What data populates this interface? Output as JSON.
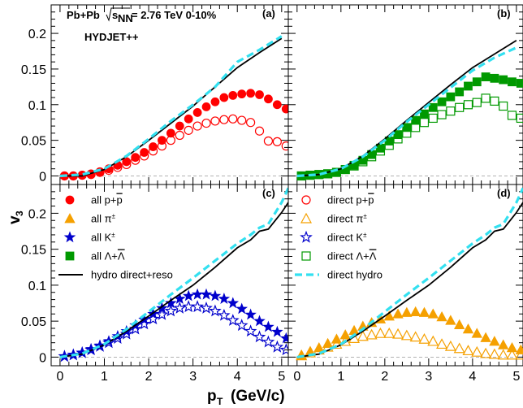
{
  "figure": {
    "collision_label": "Pb+Pb",
    "energy_label": "= 2.76 TeV 0-10%",
    "sqrt_prefix": "s",
    "sqrt_sub": "NN",
    "model_label": "HYDJET++",
    "model_color": "#0a0a6e",
    "y_axis_label": "v",
    "y_axis_sub": "3",
    "x_axis_label": "(GeV/c)",
    "x_axis_main": "p",
    "x_axis_sub": "T"
  },
  "colors": {
    "proton": "#ff0000",
    "pion": "#f5a000",
    "kaon": "#0000cc",
    "lambda": "#009900",
    "hydro_full": "#000000",
    "hydro_direct": "#33e0f0"
  },
  "chart_data": [
    {
      "type": "scatter",
      "panel_label": "(a)",
      "xlim": [
        -0.2,
        5.15
      ],
      "ylim": [
        -0.012,
        0.24
      ],
      "x_ticks": [
        0,
        1,
        2,
        3,
        4,
        5
      ],
      "y_ticks": [
        0,
        0.05,
        0.1,
        0.15,
        0.2
      ],
      "y_tick_labels": [
        "0",
        "0.05",
        "0.1",
        "0.15",
        "0.2"
      ],
      "series": [
        {
          "name": "all p+p̄",
          "marker": "circle",
          "filled": true,
          "color_key": "proton",
          "x": [
            0.1,
            0.3,
            0.5,
            0.7,
            0.9,
            1.1,
            1.3,
            1.5,
            1.7,
            1.9,
            2.1,
            2.3,
            2.5,
            2.7,
            2.9,
            3.1,
            3.3,
            3.5,
            3.7,
            3.9,
            4.1,
            4.3,
            4.5,
            4.7,
            4.9,
            5.1
          ],
          "y": [
            0.0,
            0.0,
            0.001,
            0.003,
            0.006,
            0.01,
            0.015,
            0.02,
            0.026,
            0.033,
            0.041,
            0.05,
            0.06,
            0.07,
            0.08,
            0.089,
            0.097,
            0.104,
            0.11,
            0.113,
            0.115,
            0.116,
            0.114,
            0.108,
            0.1,
            0.094
          ]
        },
        {
          "name": "direct p+p̄",
          "marker": "circle",
          "filled": false,
          "color_key": "proton",
          "x": [
            0.1,
            0.3,
            0.5,
            0.7,
            0.9,
            1.1,
            1.3,
            1.5,
            1.7,
            1.9,
            2.1,
            2.3,
            2.5,
            2.7,
            2.9,
            3.1,
            3.3,
            3.5,
            3.7,
            3.9,
            4.1,
            4.3,
            4.5,
            4.7,
            4.9,
            5.1
          ],
          "y": [
            0.0,
            0.0,
            0.001,
            0.002,
            0.005,
            0.008,
            0.012,
            0.016,
            0.022,
            0.028,
            0.035,
            0.042,
            0.05,
            0.057,
            0.064,
            0.07,
            0.074,
            0.077,
            0.079,
            0.08,
            0.078,
            0.075,
            0.063,
            0.049,
            0.048,
            0.042
          ]
        },
        {
          "name": "hydro direct+reso",
          "line": true,
          "dashed": false,
          "color_key": "hydro_full",
          "x": [
            0.0,
            0.5,
            1.0,
            1.5,
            2.0,
            2.5,
            3.0,
            3.5,
            4.0,
            4.5,
            5.0
          ],
          "y": [
            0.0,
            0.0,
            0.009,
            0.027,
            0.05,
            0.074,
            0.098,
            0.125,
            0.152,
            0.173,
            0.193
          ]
        },
        {
          "name": "direct hydro",
          "line": true,
          "dashed": true,
          "color_key": "hydro_direct",
          "x": [
            0.0,
            0.5,
            1.0,
            1.5,
            2.0,
            2.5,
            3.0,
            3.5,
            4.0,
            4.5,
            5.0
          ],
          "y": [
            0.0,
            0.002,
            0.01,
            0.028,
            0.052,
            0.077,
            0.1,
            0.125,
            0.16,
            0.177,
            0.196
          ]
        }
      ]
    },
    {
      "type": "scatter",
      "panel_label": "(b)",
      "xlim": [
        -0.2,
        5.15
      ],
      "ylim": [
        -0.012,
        0.24
      ],
      "x_ticks": [
        0,
        1,
        2,
        3,
        4,
        5
      ],
      "y_ticks": [
        0,
        0.05,
        0.1,
        0.15,
        0.2
      ],
      "series": [
        {
          "name": "all Λ+Λ̄",
          "marker": "square",
          "filled": true,
          "color_key": "lambda",
          "x": [
            0.1,
            0.3,
            0.5,
            0.7,
            0.9,
            1.1,
            1.3,
            1.5,
            1.7,
            1.9,
            2.1,
            2.3,
            2.5,
            2.7,
            2.9,
            3.1,
            3.3,
            3.5,
            3.7,
            3.9,
            4.1,
            4.3,
            4.5,
            4.7,
            4.9,
            5.1
          ],
          "y": [
            0.0,
            0.001,
            0.002,
            0.003,
            0.005,
            0.009,
            0.015,
            0.022,
            0.03,
            0.039,
            0.049,
            0.058,
            0.068,
            0.078,
            0.087,
            0.096,
            0.104,
            0.111,
            0.118,
            0.126,
            0.132,
            0.139,
            0.137,
            0.135,
            0.132,
            0.13
          ]
        },
        {
          "name": "direct Λ+Λ̄",
          "marker": "square",
          "filled": false,
          "color_key": "lambda",
          "x": [
            0.1,
            0.3,
            0.5,
            0.7,
            0.9,
            1.1,
            1.3,
            1.5,
            1.7,
            1.9,
            2.1,
            2.3,
            2.5,
            2.7,
            2.9,
            3.1,
            3.3,
            3.5,
            3.7,
            3.9,
            4.1,
            4.3,
            4.5,
            4.7,
            4.9,
            5.1
          ],
          "y": [
            0.0,
            0.001,
            0.002,
            0.003,
            0.005,
            0.009,
            0.014,
            0.02,
            0.027,
            0.035,
            0.043,
            0.052,
            0.06,
            0.068,
            0.075,
            0.081,
            0.086,
            0.091,
            0.096,
            0.1,
            0.103,
            0.109,
            0.105,
            0.098,
            0.085,
            0.081
          ]
        },
        {
          "name": "hydro direct+reso",
          "line": true,
          "dashed": false,
          "color_key": "hydro_full",
          "x": [
            0.0,
            0.5,
            1.0,
            1.5,
            2.0,
            2.5,
            3.0,
            3.5,
            4.0,
            4.5,
            5.0
          ],
          "y": [
            0.0,
            0.002,
            0.01,
            0.028,
            0.052,
            0.078,
            0.103,
            0.128,
            0.152,
            0.171,
            0.19
          ]
        },
        {
          "name": "direct hydro",
          "line": true,
          "dashed": true,
          "color_key": "hydro_direct",
          "x": [
            0.0,
            0.5,
            1.0,
            1.5,
            2.0,
            2.5,
            3.0,
            3.5,
            4.0,
            4.5,
            5.0
          ],
          "y": [
            0.0,
            0.002,
            0.01,
            0.027,
            0.05,
            0.076,
            0.1,
            0.124,
            0.148,
            0.166,
            0.18
          ]
        }
      ]
    },
    {
      "type": "scatter",
      "panel_label": "(c)",
      "xlim": [
        -0.2,
        5.15
      ],
      "ylim": [
        -0.012,
        0.24
      ],
      "x_ticks": [
        0,
        1,
        2,
        3,
        4,
        5
      ],
      "y_ticks": [
        0,
        0.05,
        0.1,
        0.15,
        0.2
      ],
      "y_tick_labels": [
        "0",
        "0.05",
        "0.1",
        "0.15",
        "0.2"
      ],
      "x_tick_labels": [
        "0",
        "1",
        "2",
        "3",
        "4",
        "5"
      ],
      "series": [
        {
          "name": "all K±",
          "marker": "star",
          "filled": true,
          "color_key": "kaon",
          "x": [
            0.1,
            0.3,
            0.5,
            0.7,
            0.9,
            1.1,
            1.3,
            1.5,
            1.7,
            1.9,
            2.1,
            2.3,
            2.5,
            2.7,
            2.9,
            3.1,
            3.3,
            3.5,
            3.7,
            3.9,
            4.1,
            4.3,
            4.5,
            4.7,
            4.9,
            5.1
          ],
          "y": [
            0.001,
            0.003,
            0.006,
            0.011,
            0.016,
            0.022,
            0.029,
            0.036,
            0.044,
            0.052,
            0.06,
            0.068,
            0.075,
            0.081,
            0.085,
            0.087,
            0.087,
            0.085,
            0.081,
            0.075,
            0.067,
            0.059,
            0.05,
            0.042,
            0.035,
            0.026
          ]
        },
        {
          "name": "direct K±",
          "marker": "star",
          "filled": false,
          "color_key": "kaon",
          "x": [
            0.1,
            0.3,
            0.5,
            0.7,
            0.9,
            1.1,
            1.3,
            1.5,
            1.7,
            1.9,
            2.1,
            2.3,
            2.5,
            2.7,
            2.9,
            3.1,
            3.3,
            3.5,
            3.7,
            3.9,
            4.1,
            4.3,
            4.5,
            4.7,
            4.9,
            5.1
          ],
          "y": [
            0.001,
            0.003,
            0.006,
            0.01,
            0.015,
            0.02,
            0.026,
            0.032,
            0.039,
            0.046,
            0.053,
            0.059,
            0.064,
            0.068,
            0.07,
            0.07,
            0.068,
            0.064,
            0.058,
            0.051,
            0.044,
            0.036,
            0.028,
            0.021,
            0.014,
            0.01
          ]
        },
        {
          "name": "hydro direct+reso",
          "line": true,
          "dashed": false,
          "color_key": "hydro_full",
          "x": [
            0.0,
            0.5,
            1.0,
            1.5,
            2.0,
            2.5,
            3.0,
            3.5,
            4.0,
            4.3,
            4.5,
            4.7,
            5.0,
            5.15
          ],
          "y": [
            0.0,
            0.004,
            0.017,
            0.036,
            0.057,
            0.079,
            0.1,
            0.125,
            0.152,
            0.163,
            0.175,
            0.178,
            0.201,
            0.215
          ]
        },
        {
          "name": "direct hydro",
          "line": true,
          "dashed": true,
          "color_key": "hydro_direct",
          "x": [
            0.0,
            0.5,
            1.0,
            1.5,
            2.0,
            2.5,
            3.0,
            3.5,
            4.0,
            4.3,
            4.5,
            4.7,
            5.0,
            5.15
          ],
          "y": [
            0.0,
            0.005,
            0.018,
            0.039,
            0.063,
            0.087,
            0.11,
            0.134,
            0.158,
            0.17,
            0.18,
            0.185,
            0.215,
            0.235
          ]
        }
      ]
    },
    {
      "type": "scatter",
      "panel_label": "(d)",
      "xlim": [
        -0.2,
        5.15
      ],
      "ylim": [
        -0.012,
        0.24
      ],
      "x_ticks": [
        0,
        1,
        2,
        3,
        4,
        5
      ],
      "y_ticks": [
        0,
        0.05,
        0.1,
        0.15,
        0.2
      ],
      "x_tick_labels": [
        "0",
        "1",
        "2",
        "3",
        "4",
        "5"
      ],
      "series": [
        {
          "name": "all π±",
          "marker": "triangle",
          "filled": true,
          "color_key": "pion",
          "x": [
            0.1,
            0.3,
            0.5,
            0.7,
            0.9,
            1.1,
            1.3,
            1.5,
            1.7,
            1.9,
            2.1,
            2.3,
            2.5,
            2.7,
            2.9,
            3.1,
            3.3,
            3.5,
            3.7,
            3.9,
            4.1,
            4.3,
            4.5,
            4.7,
            4.9,
            5.1
          ],
          "y": [
            0.003,
            0.008,
            0.013,
            0.019,
            0.025,
            0.031,
            0.037,
            0.043,
            0.048,
            0.053,
            0.057,
            0.06,
            0.062,
            0.063,
            0.062,
            0.06,
            0.056,
            0.051,
            0.045,
            0.039,
            0.033,
            0.027,
            0.022,
            0.017,
            0.013,
            0.01
          ]
        },
        {
          "name": "direct π±",
          "marker": "triangle",
          "filled": false,
          "color_key": "pion",
          "x": [
            0.1,
            0.3,
            0.5,
            0.7,
            0.9,
            1.1,
            1.3,
            1.5,
            1.7,
            1.9,
            2.1,
            2.3,
            2.5,
            2.7,
            2.9,
            3.1,
            3.3,
            3.5,
            3.7,
            3.9,
            4.1,
            4.3,
            4.5,
            4.7,
            4.9,
            5.1
          ],
          "y": [
            0.002,
            0.006,
            0.01,
            0.014,
            0.018,
            0.022,
            0.026,
            0.029,
            0.031,
            0.033,
            0.033,
            0.032,
            0.03,
            0.028,
            0.025,
            0.022,
            0.018,
            0.015,
            0.012,
            0.009,
            0.007,
            0.005,
            0.004,
            0.003,
            0.003,
            0.003
          ]
        },
        {
          "name": "hydro direct+reso",
          "line": true,
          "dashed": false,
          "color_key": "hydro_full",
          "x": [
            0.0,
            0.5,
            1.0,
            1.5,
            2.0,
            2.5,
            3.0,
            3.5,
            4.0,
            4.3,
            4.5,
            4.7,
            5.0,
            5.15
          ],
          "y": [
            0.0,
            0.004,
            0.017,
            0.036,
            0.057,
            0.079,
            0.1,
            0.125,
            0.152,
            0.163,
            0.175,
            0.178,
            0.201,
            0.215
          ]
        },
        {
          "name": "direct hydro",
          "line": true,
          "dashed": true,
          "color_key": "hydro_direct",
          "x": [
            0.0,
            0.5,
            1.0,
            1.5,
            2.0,
            2.5,
            3.0,
            3.5,
            4.0,
            4.3,
            4.5,
            4.7,
            5.0,
            5.15
          ],
          "y": [
            0.0,
            0.005,
            0.018,
            0.039,
            0.063,
            0.087,
            0.11,
            0.134,
            0.158,
            0.17,
            0.18,
            0.185,
            0.215,
            0.235
          ]
        }
      ]
    }
  ],
  "legend_left": [
    {
      "text": "all p+",
      "bar_text": "p",
      "marker": "circle",
      "filled": true,
      "color_key": "proton"
    },
    {
      "text": "all π",
      "sup": "±",
      "marker": "triangle",
      "filled": true,
      "color_key": "pion"
    },
    {
      "text": "all K",
      "sup": "±",
      "marker": "star",
      "filled": true,
      "color_key": "kaon"
    },
    {
      "text": "all Λ+",
      "bar_text": "Λ",
      "marker": "square",
      "filled": true,
      "color_key": "lambda"
    },
    {
      "text": "hydro direct+reso",
      "marker": "line",
      "color_key": "hydro_full"
    }
  ],
  "legend_right": [
    {
      "text": "direct p+",
      "bar_text": "p",
      "marker": "circle",
      "filled": false,
      "color_key": "proton"
    },
    {
      "text": "direct π",
      "sup": "±",
      "marker": "triangle",
      "filled": false,
      "color_key": "pion"
    },
    {
      "text": "direct K",
      "sup": "±",
      "marker": "star",
      "filled": false,
      "color_key": "kaon"
    },
    {
      "text": "direct Λ+",
      "bar_text": "Λ",
      "marker": "square",
      "filled": false,
      "color_key": "lambda"
    },
    {
      "text": "direct hydro",
      "marker": "dash",
      "color_key": "hydro_direct"
    }
  ]
}
